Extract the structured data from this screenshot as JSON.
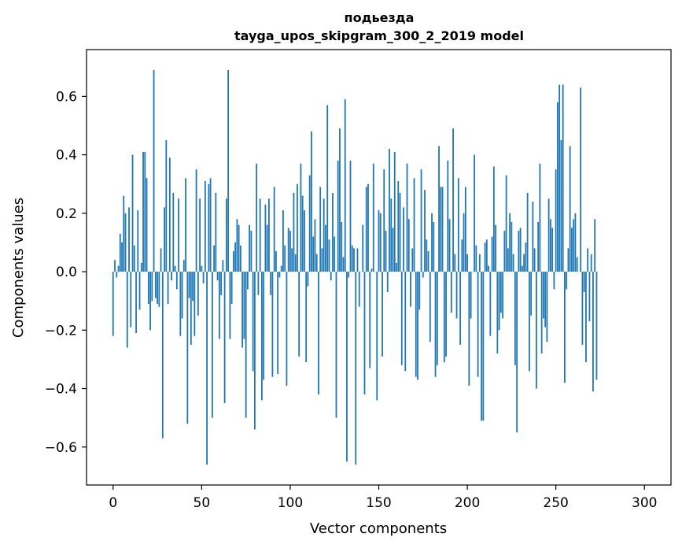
{
  "chart_data": {
    "type": "bar",
    "title_line1": "подьезда",
    "title_line2": "tayga_upos_skipgram_300_2_2019 model",
    "xlabel": "Vector components",
    "ylabel": "Components values",
    "xlim": [
      -15,
      315
    ],
    "ylim": [
      -0.73,
      0.76
    ],
    "xticks": [
      0,
      50,
      100,
      150,
      200,
      250,
      300
    ],
    "xtick_labels": [
      "0",
      "50",
      "100",
      "150",
      "200",
      "250",
      "300"
    ],
    "yticks": [
      0.6,
      0.4,
      0.2,
      0.0,
      -0.2,
      -0.4,
      -0.6
    ],
    "ytick_labels": [
      "0.6",
      "0.4",
      "0.2",
      "0.0",
      "−0.2",
      "−0.4",
      "−0.6"
    ],
    "bar_color": "#1f77b4",
    "grid": false,
    "values": [
      -0.22,
      0.04,
      -0.02,
      0.02,
      0.13,
      0.1,
      0.26,
      0.2,
      -0.26,
      0.22,
      -0.19,
      0.4,
      0.09,
      -0.21,
      0.21,
      -0.13,
      0.03,
      0.41,
      0.41,
      0.32,
      -0.11,
      -0.2,
      -0.1,
      0.69,
      -0.09,
      -0.11,
      -0.12,
      0.08,
      -0.57,
      0.22,
      0.45,
      -0.11,
      0.39,
      -0.03,
      0.27,
      0.02,
      -0.06,
      0.25,
      -0.22,
      -0.16,
      0.04,
      0.32,
      -0.52,
      -0.09,
      -0.25,
      -0.1,
      -0.22,
      0.35,
      -0.15,
      0.25,
      0.02,
      -0.04,
      0.31,
      -0.66,
      0.3,
      0.32,
      -0.5,
      0.09,
      0.27,
      -0.03,
      -0.23,
      -0.08,
      0.04,
      -0.45,
      0.25,
      0.69,
      -0.23,
      -0.11,
      0.07,
      0.1,
      0.18,
      0.16,
      0.09,
      -0.26,
      -0.23,
      -0.5,
      -0.06,
      0.16,
      0.14,
      -0.34,
      -0.54,
      0.37,
      -0.08,
      0.25,
      -0.44,
      -0.37,
      0.23,
      0.16,
      0.25,
      -0.08,
      -0.36,
      0.29,
      0.07,
      -0.35,
      -0.02,
      0.02,
      0.21,
      0.09,
      -0.39,
      0.15,
      0.14,
      0.08,
      0.27,
      0.06,
      0.3,
      -0.29,
      0.37,
      0.26,
      0.21,
      -0.31,
      -0.05,
      0.33,
      0.48,
      0.12,
      0.18,
      0.06,
      -0.42,
      0.29,
      0.08,
      0.25,
      0.16,
      0.57,
      0.11,
      -0.03,
      0.27,
      0.12,
      -0.5,
      0.38,
      0.49,
      0.17,
      0.05,
      0.59,
      -0.65,
      -0.02,
      0.38,
      0.09,
      0.08,
      -0.66,
      0.08,
      -0.12,
      0.0,
      0.16,
      -0.42,
      0.29,
      0.3,
      -0.33,
      0.01,
      0.37,
      0.0,
      -0.44,
      0.21,
      0.2,
      -0.29,
      0.35,
      0.14,
      -0.07,
      0.42,
      0.25,
      0.15,
      0.41,
      0.03,
      0.31,
      0.27,
      -0.32,
      0.22,
      -0.34,
      0.37,
      0.18,
      -0.12,
      0.08,
      0.32,
      -0.36,
      -0.37,
      -0.13,
      0.35,
      -0.02,
      0.28,
      0.11,
      0.07,
      -0.24,
      0.2,
      0.17,
      -0.36,
      -0.32,
      0.43,
      0.29,
      0.29,
      -0.31,
      -0.29,
      0.38,
      0.18,
      -0.14,
      0.49,
      0.06,
      -0.16,
      0.32,
      -0.25,
      0.11,
      0.2,
      0.29,
      0.06,
      -0.39,
      -0.16,
      0.0,
      0.4,
      0.09,
      -0.36,
      0.06,
      -0.51,
      -0.51,
      0.1,
      0.11,
      0.02,
      -0.22,
      0.12,
      0.36,
      0.16,
      -0.28,
      -0.2,
      -0.14,
      -0.16,
      0.14,
      0.33,
      0.08,
      0.2,
      0.17,
      0.06,
      -0.32,
      -0.55,
      0.14,
      0.15,
      0.02,
      0.06,
      0.1,
      0.27,
      -0.34,
      -0.15,
      0.24,
      0.08,
      -0.4,
      0.17,
      0.37,
      -0.28,
      -0.16,
      -0.19,
      -0.24,
      0.25,
      0.18,
      0.15,
      -0.06,
      0.35,
      0.58,
      0.64,
      0.45,
      0.64,
      -0.38,
      -0.06,
      0.08,
      0.43,
      0.15,
      0.18,
      0.2,
      0.05,
      0.0,
      0.63,
      -0.25,
      -0.07,
      -0.31,
      0.08,
      -0.17,
      0.06,
      -0.41,
      0.18,
      -0.37
    ]
  }
}
